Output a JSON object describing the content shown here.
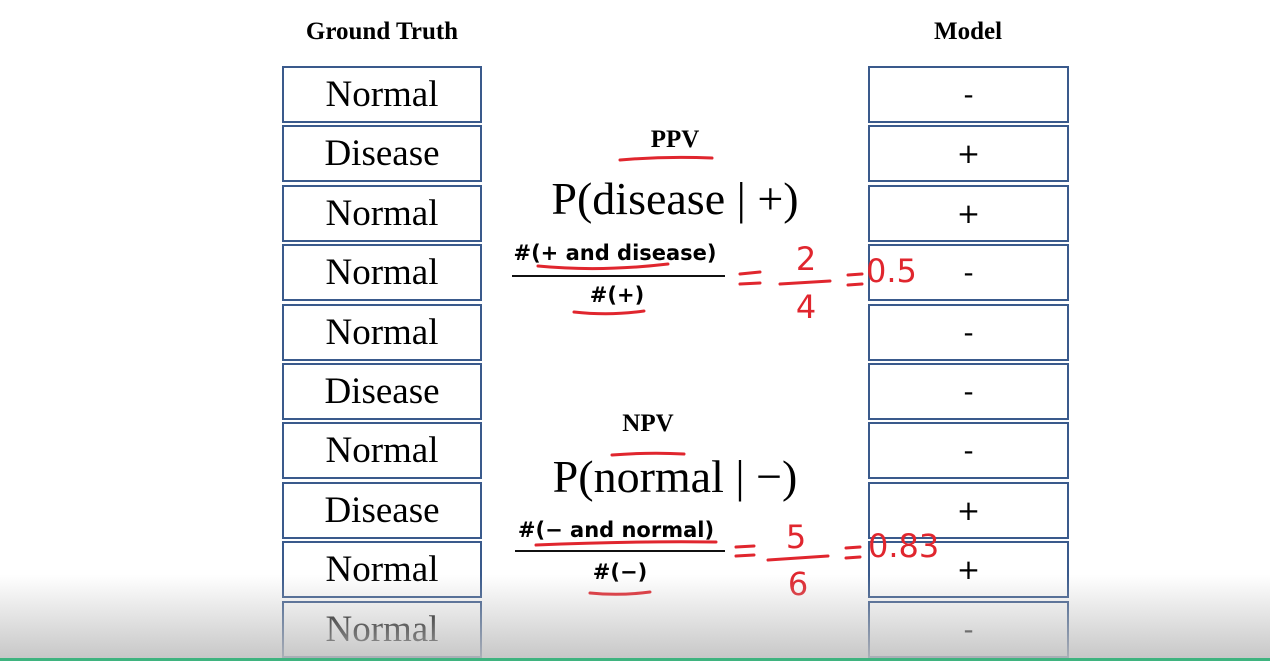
{
  "headers": {
    "ground_truth": "Ground Truth",
    "model": "Model"
  },
  "table": {
    "ground_truth": [
      "Normal",
      "Disease",
      "Normal",
      "Normal",
      "Normal",
      "Disease",
      "Normal",
      "Disease",
      "Normal",
      "Normal"
    ],
    "model": [
      "-",
      "+",
      "+",
      "-",
      "-",
      "-",
      "-",
      "+",
      "+",
      "-"
    ]
  },
  "ppv": {
    "label": "PPV",
    "formula": "P(disease | +)",
    "numerator": "#(+ and disease)",
    "denominator": "#(+)",
    "handwritten": {
      "numerator": "2",
      "denominator": "4",
      "result": "0.5"
    }
  },
  "npv": {
    "label": "NPV",
    "formula": "P(normal | −)",
    "numerator": "#(− and normal)",
    "denominator": "#(−)",
    "handwritten": {
      "numerator": "5",
      "denominator": "6",
      "result": "0.83"
    }
  }
}
